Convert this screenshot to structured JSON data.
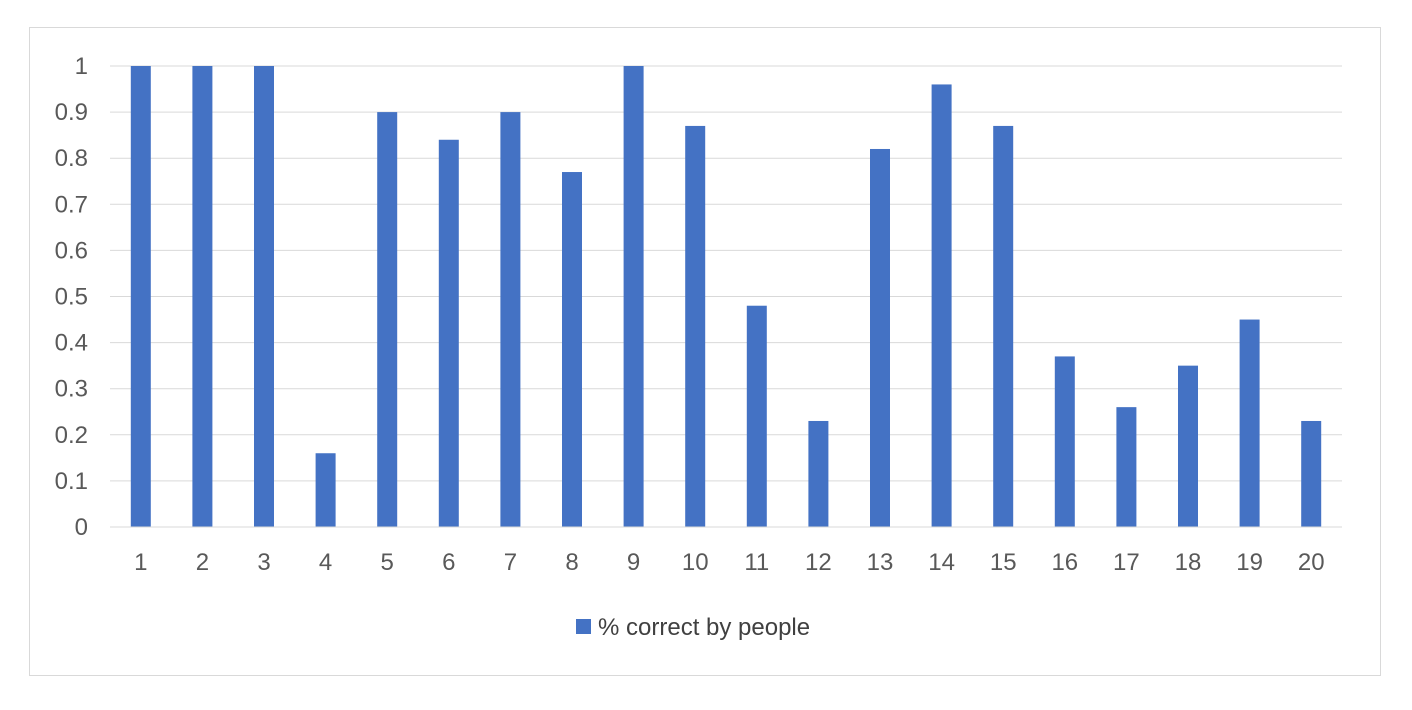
{
  "chart_data": {
    "type": "bar",
    "categories": [
      "1",
      "2",
      "3",
      "4",
      "5",
      "6",
      "7",
      "8",
      "9",
      "10",
      "11",
      "12",
      "13",
      "14",
      "15",
      "16",
      "17",
      "18",
      "19",
      "20"
    ],
    "series": [
      {
        "name": "% correct by people",
        "color": "#4472C4",
        "values": [
          1.0,
          1.0,
          1.0,
          0.16,
          0.9,
          0.84,
          0.9,
          0.77,
          1.0,
          0.87,
          0.48,
          0.23,
          0.82,
          0.96,
          0.87,
          0.37,
          0.26,
          0.35,
          0.45,
          0.23
        ]
      }
    ],
    "y_ticks": [
      "0",
      "0.1",
      "0.2",
      "0.3",
      "0.4",
      "0.5",
      "0.6",
      "0.7",
      "0.8",
      "0.9",
      "1"
    ],
    "ylim": [
      0,
      1
    ],
    "grid": true,
    "legend_position": "bottom"
  }
}
